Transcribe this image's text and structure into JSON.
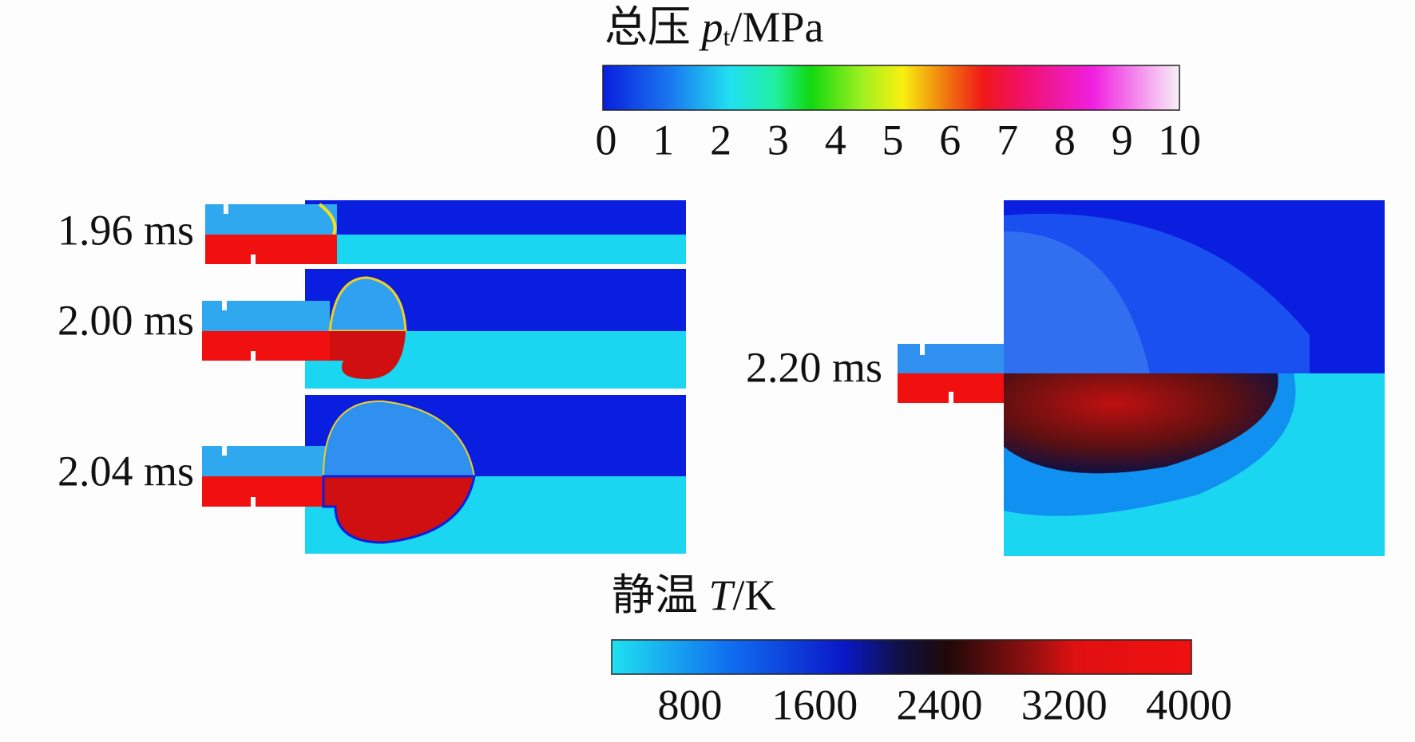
{
  "pressure_colorbar": {
    "title": [
      "总压 ",
      "p",
      "t",
      "/MPa"
    ],
    "ticks": [
      0,
      1,
      2,
      3,
      4,
      5,
      6,
      7,
      8,
      9,
      10
    ]
  },
  "temperature_colorbar": {
    "title": [
      "静温 ",
      "T",
      "/K"
    ],
    "ticks": [
      800,
      1600,
      2400,
      3200,
      4000
    ]
  },
  "snapshots": [
    "1.96 ms",
    "2.00 ms",
    "2.04 ms",
    "2.20 ms"
  ]
}
